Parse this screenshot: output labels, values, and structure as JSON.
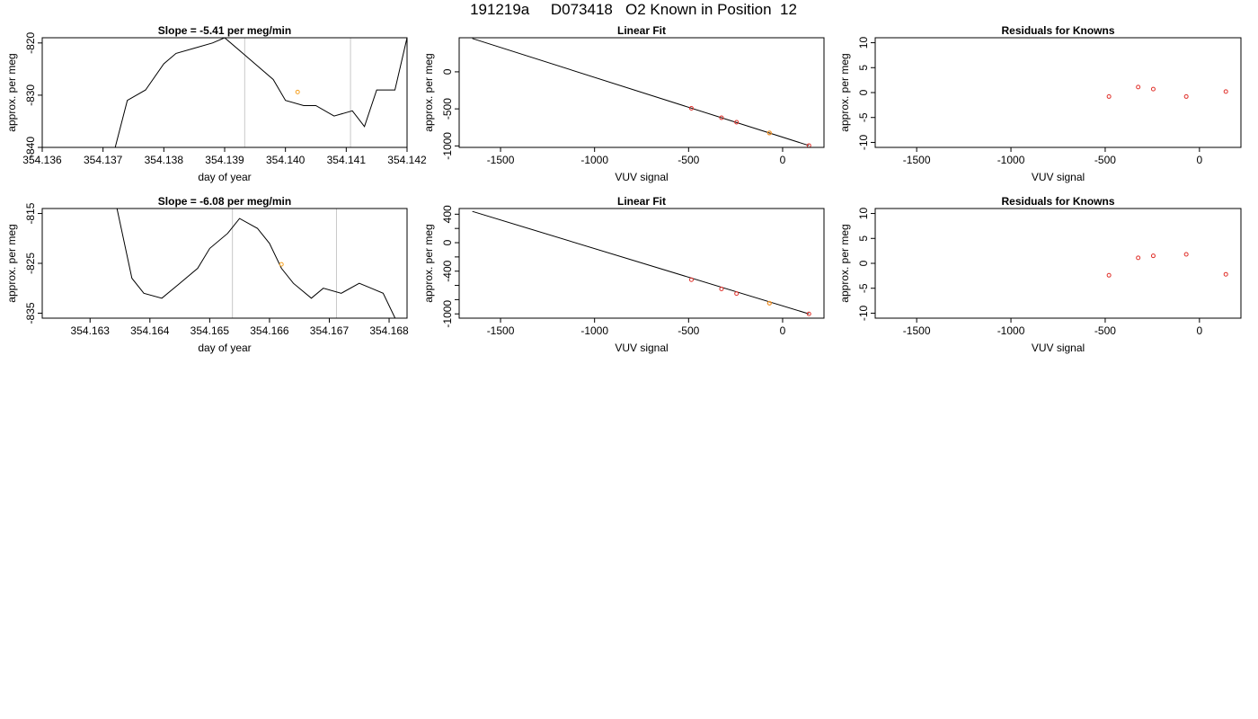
{
  "page_title": "191219a     D073418   O2 Known in Position  12",
  "chart_data": [
    {
      "type": "line",
      "title": "Slope =  -5.41  per meg/min",
      "xlabel": "day of year",
      "ylabel": "approx. per meg",
      "xlim": [
        354.136,
        354.142
      ],
      "ylim": [
        -840,
        -819
      ],
      "x_ticks": [
        "354.136",
        "354.137",
        "354.138",
        "354.139",
        "354.140",
        "354.141",
        "354.142"
      ],
      "y_ticks": [
        "-820",
        "-830",
        "-840"
      ],
      "vlines": [
        354.13933,
        354.14107
      ],
      "series": [
        {
          "x": [
            354.1372,
            354.1374,
            354.1377,
            354.138,
            354.1382,
            354.1385,
            354.1388,
            354.139,
            354.1393,
            354.1395,
            354.1398,
            354.14,
            354.1403,
            354.1405,
            354.1408,
            354.1411,
            354.1413,
            354.1415,
            354.1418,
            354.142
          ],
          "y": [
            -840,
            -831,
            -829,
            -824,
            -822,
            -821,
            -820,
            -819,
            -822,
            -824,
            -827,
            -831,
            -832,
            -832,
            -834,
            -833,
            -836,
            -829,
            -829,
            -819
          ]
        }
      ],
      "highlight_point": {
        "x": 354.1402,
        "y": -829.4
      }
    },
    {
      "type": "scatter",
      "title": "Linear Fit",
      "xlabel": "VUV signal",
      "ylabel": "approx. per meg",
      "xlim": [
        -1720,
        220
      ],
      "ylim": [
        -1020,
        460
      ],
      "x_ticks": [
        "-1500",
        "-1000",
        "-500",
        "0"
      ],
      "y_ticks": [
        "0",
        "-500",
        "-1000"
      ],
      "fit_line": {
        "x": [
          -1650,
          140
        ],
        "y": [
          450,
          -995
        ]
      },
      "points": {
        "x": [
          -485,
          -325,
          -245,
          -70,
          140
        ],
        "y": [
          -492,
          -620,
          -680,
          -825,
          -995
        ]
      },
      "highlight_point": {
        "x": -70,
        "y": -825
      }
    },
    {
      "type": "scatter",
      "title": "Residuals for Knowns",
      "xlabel": "VUV signal",
      "ylabel": "approx. per meg",
      "xlim": [
        -1720,
        220
      ],
      "ylim": [
        -11,
        11
      ],
      "x_ticks": [
        "-1500",
        "-1000",
        "-500",
        "0"
      ],
      "y_ticks": [
        "10",
        "5",
        "0",
        "-5",
        "-10"
      ],
      "points": {
        "x": [
          -480,
          -325,
          -245,
          -70,
          140
        ],
        "y": [
          -0.8,
          1.1,
          0.7,
          -0.8,
          0.2
        ]
      }
    },
    {
      "type": "line",
      "title": "Slope =  -6.08  per meg/min",
      "xlabel": "day of year",
      "ylabel": "approx. per meg",
      "xlim": [
        354.1622,
        354.1683
      ],
      "ylim": [
        -836,
        -814
      ],
      "x_ticks": [
        "354.163",
        "354.164",
        "354.165",
        "354.166",
        "354.167",
        "354.168"
      ],
      "y_ticks": [
        "-815",
        "-825",
        "-835"
      ],
      "vlines": [
        354.16538,
        354.16712
      ],
      "series": [
        {
          "x": [
            354.16345,
            354.1637,
            354.1639,
            354.1642,
            354.1645,
            354.1648,
            354.165,
            354.1653,
            354.1655,
            354.1658,
            354.166,
            354.1662,
            354.1664,
            354.1667,
            354.1669,
            354.1672,
            354.1675,
            354.1677,
            354.1679,
            354.1681
          ],
          "y": [
            -814,
            -828,
            -831,
            -832,
            -829,
            -826,
            -822,
            -819,
            -816,
            -818,
            -821,
            -826,
            -829,
            -832,
            -830,
            -831,
            -829,
            -830,
            -831,
            -836
          ]
        }
      ],
      "highlight_point": {
        "x": 354.1662,
        "y": -825.2
      }
    },
    {
      "type": "scatter",
      "title": "Linear Fit",
      "xlabel": "VUV signal",
      "ylabel": "approx. per meg",
      "xlim": [
        -1720,
        220
      ],
      "ylim": [
        -1060,
        480
      ],
      "x_ticks": [
        "-1500",
        "-1000",
        "-500",
        "0"
      ],
      "y_ticks": [
        "400",
        "0",
        "-400",
        "-1000"
      ],
      "y_minor_ticks": [
        200,
        -200,
        -600,
        -800
      ],
      "fit_line": {
        "x": [
          -1650,
          140
        ],
        "y": [
          440,
          -1000
        ]
      },
      "points": {
        "x": [
          -485,
          -325,
          -245,
          -70,
          140
        ],
        "y": [
          -520,
          -650,
          -715,
          -850,
          -1000
        ]
      },
      "highlight_point": {
        "x": -70,
        "y": -850
      }
    },
    {
      "type": "scatter",
      "title": "Residuals for Knowns",
      "xlabel": "VUV signal",
      "ylabel": "approx. per meg",
      "xlim": [
        -1720,
        220
      ],
      "ylim": [
        -11,
        11
      ],
      "x_ticks": [
        "-1500",
        "-1000",
        "-500",
        "0"
      ],
      "y_ticks": [
        "10",
        "5",
        "0",
        "-5",
        "-10"
      ],
      "points": {
        "x": [
          -480,
          -325,
          -245,
          -70,
          140
        ],
        "y": [
          -2.4,
          1.1,
          1.5,
          1.8,
          -2.2
        ]
      }
    }
  ]
}
